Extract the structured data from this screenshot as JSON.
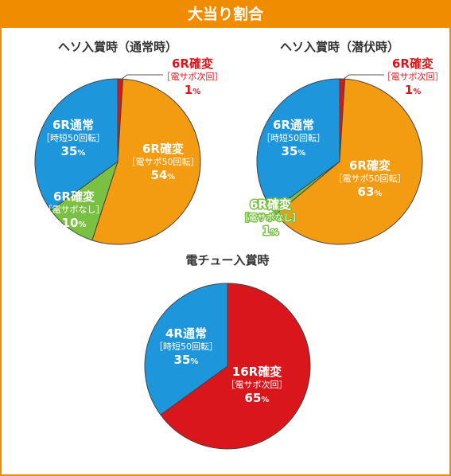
{
  "header": {
    "title": "大当り割合"
  },
  "colors": {
    "header_bg": "#F08C00",
    "orange": "#F39C12",
    "blue": "#1E96DC",
    "green": "#7AC143",
    "red": "#D9161C"
  },
  "chart_data": [
    {
      "type": "pie",
      "title": "ヘソ入賞時（通常時）",
      "slices": [
        {
          "label": "6R確変",
          "sublabel": "［電サポ次回］",
          "value": 1,
          "pct_label": "1",
          "unit": "%",
          "color": "#D9161C"
        },
        {
          "label": "6R確変",
          "sublabel": "［電サポ50回転］",
          "value": 54,
          "pct_label": "54",
          "unit": "%",
          "color": "#F39C12"
        },
        {
          "label": "6R確変",
          "sublabel": "［電サポなし］",
          "value": 10,
          "pct_label": "10",
          "unit": "%",
          "color": "#7AC143"
        },
        {
          "label": "6R通常",
          "sublabel": "［時短50回転］",
          "value": 35,
          "pct_label": "35",
          "unit": "%",
          "color": "#1E96DC"
        }
      ]
    },
    {
      "type": "pie",
      "title": "ヘソ入賞時（潜伏時）",
      "slices": [
        {
          "label": "6R確変",
          "sublabel": "［電サポ次回］",
          "value": 1,
          "pct_label": "1",
          "unit": "%",
          "color": "#D9161C"
        },
        {
          "label": "6R確変",
          "sublabel": "［電サポ50回転］",
          "value": 63,
          "pct_label": "63",
          "unit": "%",
          "color": "#F39C12"
        },
        {
          "label": "6R確変",
          "sublabel": "［電サポなし］",
          "value": 1,
          "pct_label": "1",
          "unit": "%",
          "color": "#7AC143"
        },
        {
          "label": "6R通常",
          "sublabel": "［時短50回転］",
          "value": 35,
          "pct_label": "35",
          "unit": "%",
          "color": "#1E96DC"
        }
      ]
    },
    {
      "type": "pie",
      "title": "電チュー入賞時",
      "slices": [
        {
          "label": "16R確変",
          "sublabel": "［電サポ次回］",
          "value": 65,
          "pct_label": "65",
          "unit": "%",
          "color": "#D9161C"
        },
        {
          "label": "4R通常",
          "sublabel": "［時短50回転］",
          "value": 35,
          "pct_label": "35",
          "unit": "%",
          "color": "#1E96DC"
        }
      ]
    }
  ]
}
